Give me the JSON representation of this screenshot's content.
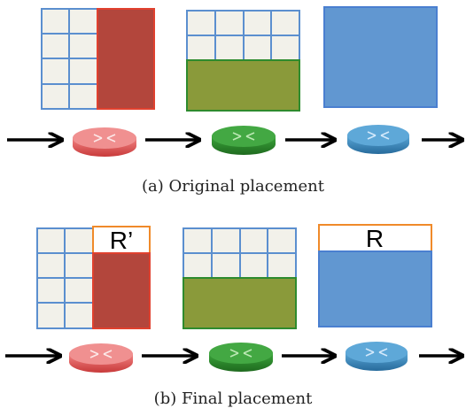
{
  "captions": {
    "a": "(a) Original placement",
    "b": "(b) Final placement"
  },
  "reserved_labels": {
    "r_prime": "R’",
    "r": "R"
  },
  "colors": {
    "grid_fill": "#f2f1ea",
    "grid_line": "#5b8fcf",
    "red_block": "#b3463c",
    "red_border": "#e0412f",
    "green_block": "#8a9a3a",
    "green_border": "#2e8b2e",
    "blue_block": "#6197d1",
    "blue_border": "#4a7fd0",
    "reserved_border": "#f08a2a",
    "router_red": "#e86060",
    "router_green": "#2e8b2e",
    "router_blue": "#3a86bd"
  },
  "icons": [
    "router-icon",
    "arrow-right-icon"
  ]
}
